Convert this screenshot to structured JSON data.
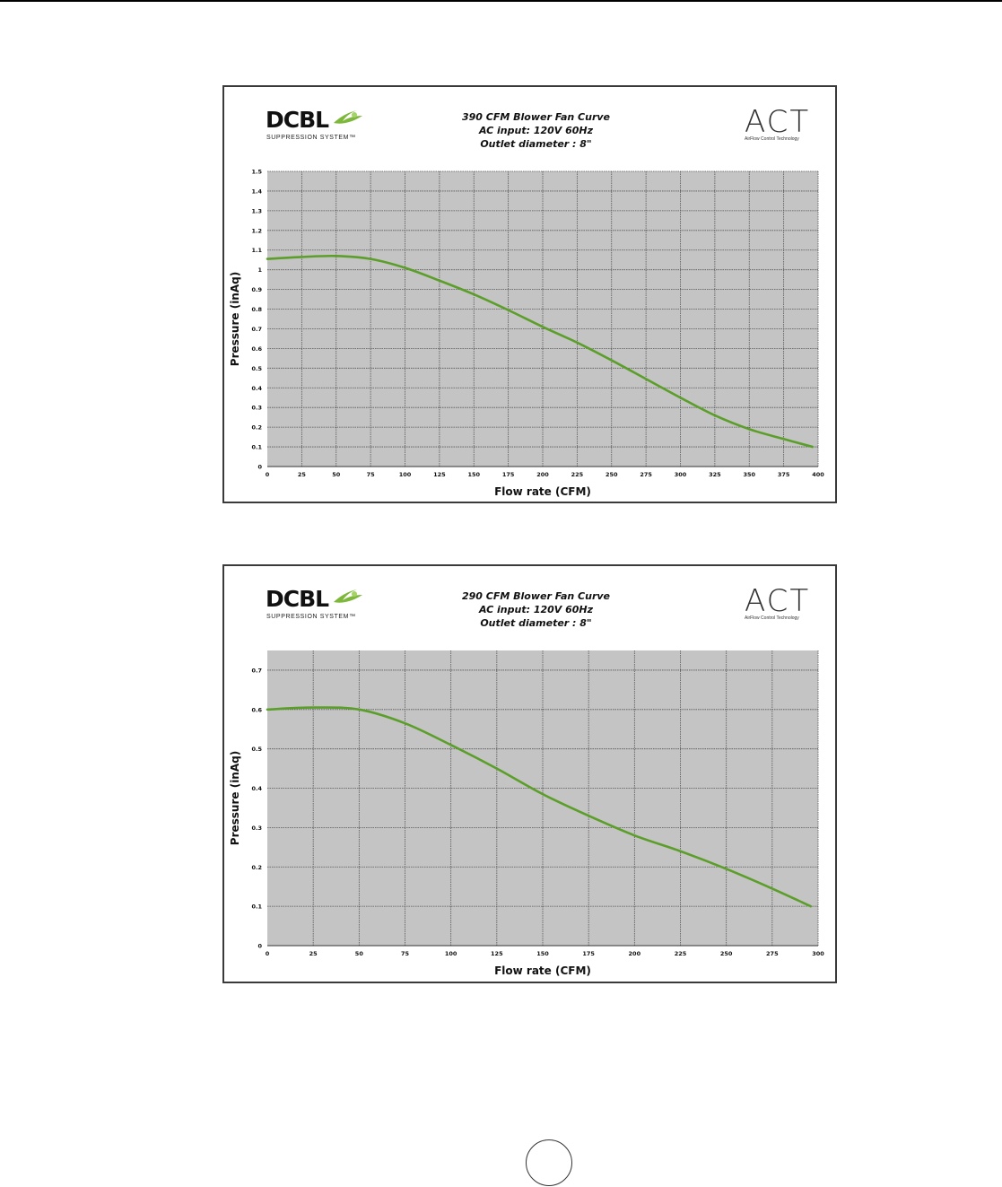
{
  "brand": {
    "dcbl_word": "DCBL",
    "dcbl_subtitle": "SUPPRESSION SYSTEM™",
    "act_word": "ACT",
    "act_subtitle": "AirFlow Control Technology",
    "leaf_icon": "leaf-icon",
    "leaf_color": "#7db83a"
  },
  "page": {
    "number": ""
  },
  "colors": {
    "curve": "#5c9e2a",
    "plot_bg": "#c4c4c4",
    "grid": "#555555"
  },
  "chart_data": [
    {
      "type": "line",
      "title_lines": [
        "390 CFM Blower Fan Curve",
        "AC input: 120V  60Hz",
        "Outlet diameter : 8\""
      ],
      "xlabel": "Flow rate (CFM)",
      "ylabel": "Pressure (inAq)",
      "xlim": [
        0,
        400
      ],
      "ylim": [
        0,
        1.5
      ],
      "xticks": [
        0,
        25,
        50,
        75,
        100,
        125,
        150,
        175,
        200,
        225,
        250,
        275,
        300,
        325,
        350,
        375,
        400
      ],
      "yticks": [
        0,
        0.1,
        0.2,
        0.3,
        0.4,
        0.5,
        0.6,
        0.7,
        0.8,
        0.9,
        1,
        1.1,
        1.2,
        1.3,
        1.4,
        1.5
      ],
      "grid": true,
      "series": [
        {
          "x": [
            0,
            25,
            50,
            75,
            100,
            125,
            150,
            175,
            200,
            225,
            250,
            275,
            300,
            325,
            350,
            375,
            396
          ],
          "y": [
            1.055,
            1.065,
            1.07,
            1.055,
            1.01,
            0.945,
            0.875,
            0.795,
            0.71,
            0.63,
            0.54,
            0.445,
            0.35,
            0.26,
            0.19,
            0.14,
            0.1
          ]
        }
      ]
    },
    {
      "type": "line",
      "title_lines": [
        "290 CFM Blower Fan Curve",
        "AC input: 120V  60Hz",
        "Outlet diameter : 8\""
      ],
      "xlabel": "Flow rate (CFM)",
      "ylabel": "Pressure (inAq)",
      "xlim": [
        0,
        300
      ],
      "ylim": [
        0,
        0.75
      ],
      "xticks": [
        0,
        25,
        50,
        75,
        100,
        125,
        150,
        175,
        200,
        225,
        250,
        275,
        300
      ],
      "yticks": [
        0,
        0.1,
        0.2,
        0.3,
        0.4,
        0.5,
        0.6,
        0.7
      ],
      "grid": true,
      "series": [
        {
          "x": [
            0,
            25,
            50,
            75,
            100,
            125,
            150,
            175,
            200,
            225,
            250,
            275,
            296
          ],
          "y": [
            0.6,
            0.605,
            0.6,
            0.565,
            0.51,
            0.45,
            0.385,
            0.33,
            0.28,
            0.24,
            0.195,
            0.145,
            0.1
          ]
        }
      ]
    }
  ]
}
